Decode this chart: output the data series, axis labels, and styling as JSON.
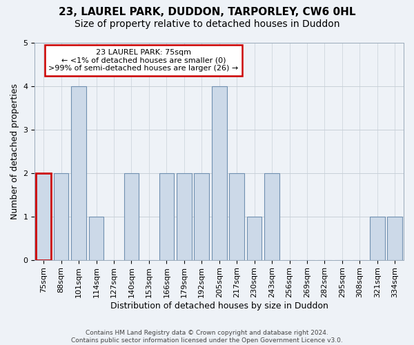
{
  "title": "23, LAUREL PARK, DUDDON, TARPORLEY, CW6 0HL",
  "subtitle": "Size of property relative to detached houses in Duddon",
  "xlabel": "Distribution of detached houses by size in Duddon",
  "ylabel": "Number of detached properties",
  "footer_line1": "Contains HM Land Registry data © Crown copyright and database right 2024.",
  "footer_line2": "Contains public sector information licensed under the Open Government Licence v3.0.",
  "categories": [
    "75sqm",
    "88sqm",
    "101sqm",
    "114sqm",
    "127sqm",
    "140sqm",
    "153sqm",
    "166sqm",
    "179sqm",
    "192sqm",
    "205sqm",
    "217sqm",
    "230sqm",
    "243sqm",
    "256sqm",
    "269sqm",
    "282sqm",
    "295sqm",
    "308sqm",
    "321sqm",
    "334sqm"
  ],
  "values": [
    2,
    2,
    4,
    1,
    0,
    2,
    0,
    2,
    2,
    2,
    4,
    2,
    1,
    2,
    0,
    0,
    0,
    0,
    0,
    1,
    1
  ],
  "bar_color": "#ccd9e8",
  "bar_edge_color": "#7090b0",
  "highlight_index": 0,
  "highlight_edge_color": "#cc0000",
  "annotation_text": "23 LAUREL PARK: 75sqm\n← <1% of detached houses are smaller (0)\n>99% of semi-detached houses are larger (26) →",
  "annotation_box_edge_color": "#cc0000",
  "ylim": [
    0,
    5
  ],
  "yticks": [
    0,
    1,
    2,
    3,
    4,
    5
  ],
  "background_color": "#eef2f7",
  "grid_color": "#c8d0d8",
  "title_fontsize": 11,
  "subtitle_fontsize": 10,
  "ylabel_fontsize": 9,
  "xlabel_fontsize": 9,
  "tick_fontsize": 8,
  "footer_fontsize": 6.5,
  "annotation_fontsize": 8
}
